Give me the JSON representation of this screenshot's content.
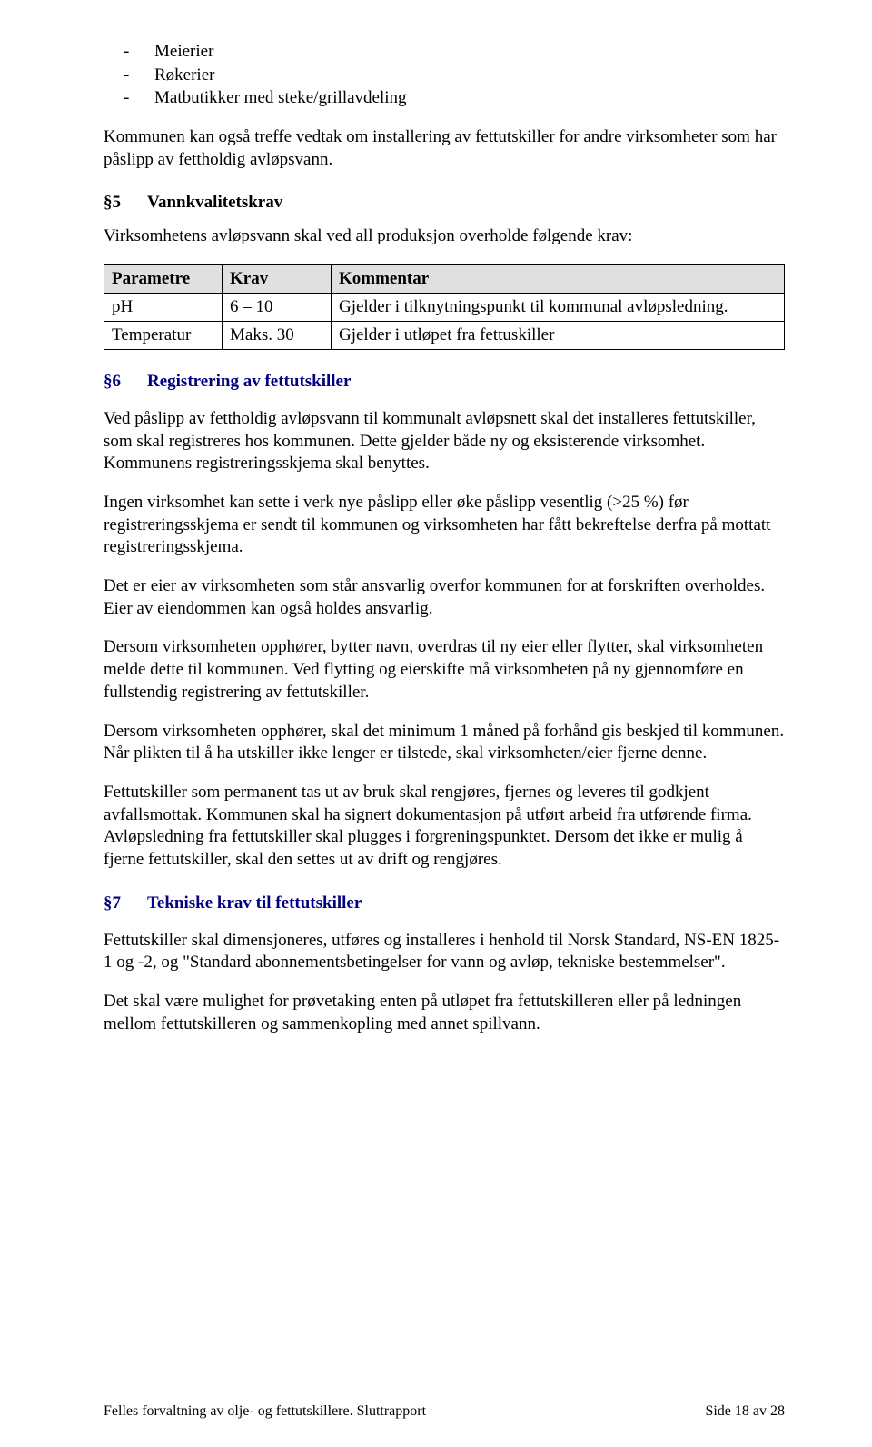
{
  "bullets": {
    "b1": "Meierier",
    "b2": "Røkerier",
    "b3": "Matbutikker med steke/grillavdeling"
  },
  "p_intro": "Kommunen kan også treffe vedtak om installering av fettutskiller for andre virksomheter som har påslipp av fettholdig avløpsvann.",
  "s5": {
    "num": "§5",
    "title": "Vannkvalitetskrav"
  },
  "p_s5": "Virksomhetens avløpsvann skal ved all produksjon overholde følgende krav:",
  "table": {
    "h1": "Parametre",
    "h2": "Krav",
    "h3": "Kommentar",
    "r1c1": "pH",
    "r1c2": "6 – 10",
    "r1c3": "Gjelder i tilknytningspunkt til kommunal avløpsledning.",
    "r2c1": "Temperatur",
    "r2c2": "Maks. 30",
    "r2c3": "Gjelder i utløpet fra fettuskiller"
  },
  "s6": {
    "num": "§6",
    "title": "Registrering av fettutskiller"
  },
  "p_s6_1": "Ved påslipp av fettholdig avløpsvann til kommunalt avløpsnett skal det installeres fettutskiller, som skal registreres hos kommunen. Dette gjelder både ny og eksisterende virksomhet. Kommunens registreringsskjema skal benyttes.",
  "p_s6_2": "Ingen virksomhet kan sette i verk nye påslipp eller øke påslipp vesentlig (>25 %) før registreringsskjema er sendt til kommunen og virksomheten har fått bekreftelse derfra på mottatt registreringsskjema.",
  "p_s6_3": "Det er eier av virksomheten som står ansvarlig overfor kommunen for at forskriften overholdes. Eier av eiendommen kan også holdes ansvarlig.",
  "p_s6_4": "Dersom virksomheten opphører, bytter navn, overdras til ny eier eller flytter, skal virksomheten melde dette til kommunen. Ved flytting og eierskifte må virksomheten på ny gjennomføre en fullstendig registrering av fettutskiller.",
  "p_s6_5": "Dersom virksomheten opphører, skal det minimum 1 måned på forhånd gis beskjed til kommunen. Når plikten til å ha utskiller ikke lenger er tilstede, skal virksomheten/eier fjerne denne.",
  "p_s6_6": "Fettutskiller som permanent tas ut av bruk skal rengjøres, fjernes og leveres til godkjent avfallsmottak. Kommunen skal ha signert dokumentasjon på utført arbeid fra utførende firma. Avløpsledning fra fettutskiller skal plugges i forgreningspunktet. Dersom det ikke er mulig å fjerne fettutskiller, skal den settes ut av drift og rengjøres.",
  "s7": {
    "num": "§7",
    "title": "Tekniske krav til fettutskiller"
  },
  "p_s7_1": "Fettutskiller skal dimensjoneres, utføres og installeres i henhold til Norsk Standard, NS-EN 1825-1 og -2, og \"Standard abonnementsbetingelser for vann og avløp, tekniske bestemmelser\".",
  "p_s7_2": "Det skal være mulighet for prøvetaking enten på utløpet fra fettutskilleren eller på ledningen mellom fettutskilleren og sammenkopling med annet spillvann.",
  "footer": {
    "left": "Felles forvaltning av olje- og fettutskillere. Sluttrapport",
    "right": "Side 18 av 28"
  }
}
